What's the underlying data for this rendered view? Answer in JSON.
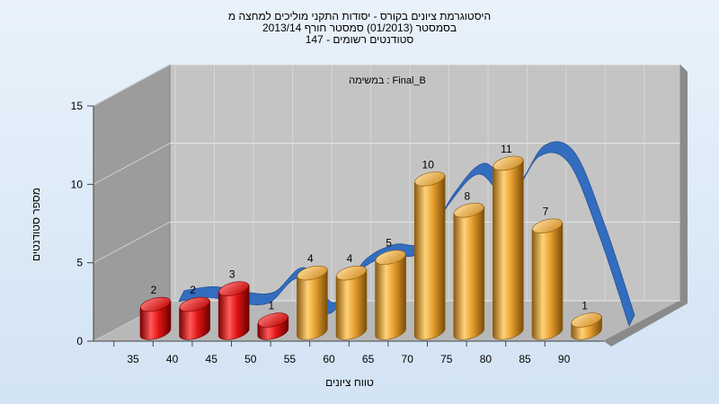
{
  "titles": [
    "היסטוגרמת ציונים בקורס - יסודות התקני מוליכים למחצה מ",
    "בסמסטר (01/2013) סמסטר חורף 2013/14",
    "סטודנטים רשומים - 147"
  ],
  "colors": {
    "red_bar": "#e01515",
    "orange_bar": "#e8a030",
    "ribbon": "#2f6bbf",
    "wall": "#c3c3c3",
    "side_wall": "#9a9a9a",
    "floor": "#b4b4b4"
  },
  "chart_data": {
    "type": "bar",
    "title": "Final_B : במשימה",
    "xlabel": "טווח ציונים",
    "ylabel": "מספר סטודנטים",
    "categories": [
      "35",
      "40",
      "45",
      "50",
      "55",
      "60",
      "65",
      "70",
      "75",
      "80",
      "85",
      "90"
    ],
    "series": [
      {
        "values": [
          2,
          2,
          3,
          1,
          4,
          4,
          5,
          10,
          8,
          11,
          7,
          1
        ],
        "bar_colors": [
          "red",
          "red",
          "red",
          "red",
          "orange",
          "orange",
          "orange",
          "orange",
          "orange",
          "orange",
          "orange",
          "orange"
        ]
      }
    ],
    "curve": [
      2.2,
      2.5,
      2.1,
      2.1,
      3.9,
      1.3,
      4.4,
      5.6,
      5.8,
      9.4,
      11.6,
      9.8,
      12.9,
      12.4,
      7.1,
      0.4
    ],
    "y_ticks": [
      0,
      5,
      10,
      15
    ],
    "ylim": [
      0,
      15
    ],
    "grid": true,
    "legend": "none"
  }
}
